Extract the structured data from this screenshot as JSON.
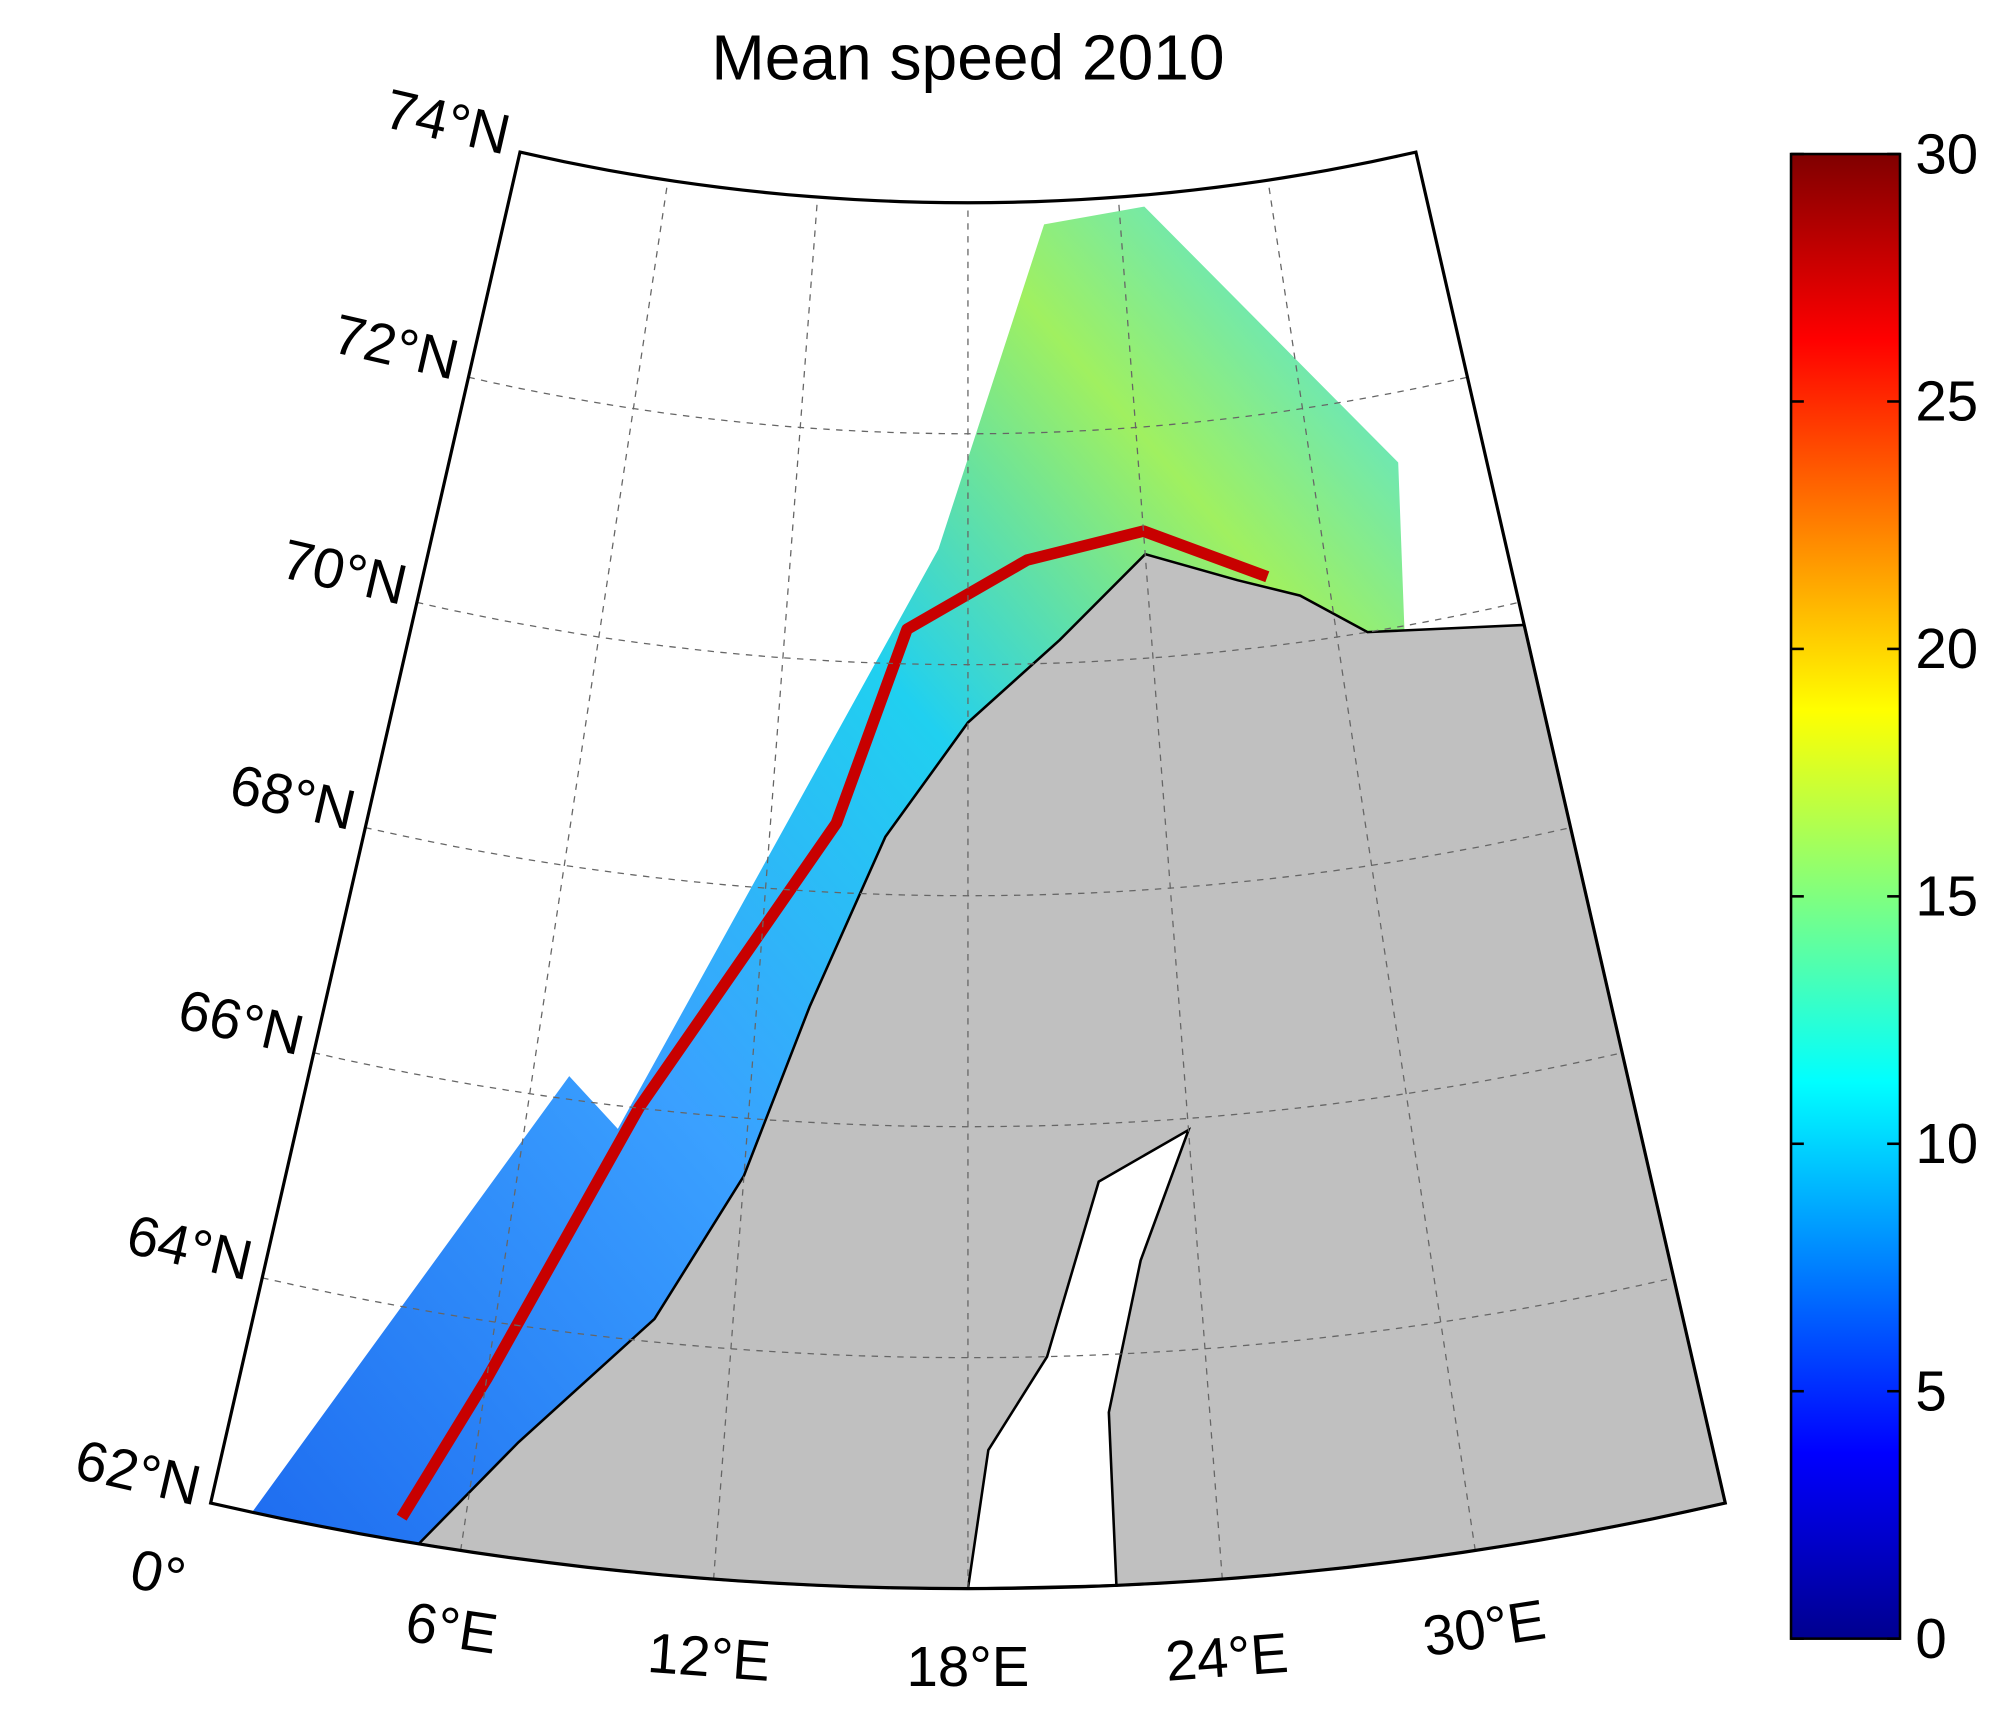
{
  "title": "Mean speed 2010",
  "map": {
    "lat_labels": [
      {
        "value": 62,
        "label": "62°N"
      },
      {
        "value": 64,
        "label": "64°N"
      },
      {
        "value": 66,
        "label": "66°N"
      },
      {
        "value": 68,
        "label": "68°N"
      },
      {
        "value": 70,
        "label": "70°N"
      },
      {
        "value": 72,
        "label": "72°N"
      },
      {
        "value": 74,
        "label": "74°N"
      }
    ],
    "lon_labels": [
      {
        "value": 0,
        "label": "0°"
      },
      {
        "value": 6,
        "label": "6°E"
      },
      {
        "value": 12,
        "label": "12°E"
      },
      {
        "value": 18,
        "label": "18°E"
      },
      {
        "value": 24,
        "label": "24°E"
      },
      {
        "value": 30,
        "label": "30°E"
      }
    ],
    "lonlim": [
      0,
      36
    ],
    "latlim": [
      62,
      74
    ],
    "grid": true
  },
  "colorbar": {
    "colormap": "jet",
    "lim": [
      0,
      30
    ],
    "ticks": [
      0,
      5,
      10,
      15,
      20,
      25,
      30
    ]
  }
}
